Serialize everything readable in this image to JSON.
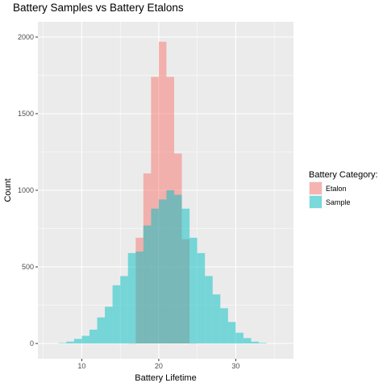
{
  "chart_data": {
    "type": "histogram",
    "title": "Battery Samples vs Battery Etalons",
    "xlabel": "Battery Lifetime",
    "ylabel": "Count",
    "xlim": [
      4.3,
      37.5
    ],
    "ylim": [
      -100,
      2100
    ],
    "x_ticks": [
      10,
      20,
      30
    ],
    "y_ticks": [
      0,
      500,
      1000,
      1500,
      2000
    ],
    "bin_width": 1,
    "grid": true,
    "legend": {
      "title": "Battery Category:",
      "position": "right"
    },
    "series": [
      {
        "name": "Etalon",
        "color": "#F8766D",
        "opacity": 0.5,
        "bins": [
          {
            "x": 16.5,
            "y": 0
          },
          {
            "x": 17.5,
            "y": 690
          },
          {
            "x": 18.5,
            "y": 1110
          },
          {
            "x": 19.5,
            "y": 1740
          },
          {
            "x": 20.5,
            "y": 1970
          },
          {
            "x": 21.5,
            "y": 1740
          },
          {
            "x": 22.5,
            "y": 1240
          },
          {
            "x": 23.5,
            "y": 680
          },
          {
            "x": 24.5,
            "y": 0
          }
        ]
      },
      {
        "name": "Sample",
        "color": "#00BFC4",
        "opacity": 0.5,
        "bins": [
          {
            "x": 7.5,
            "y": 3
          },
          {
            "x": 8.5,
            "y": 12
          },
          {
            "x": 9.5,
            "y": 30
          },
          {
            "x": 10.5,
            "y": 50
          },
          {
            "x": 11.5,
            "y": 90
          },
          {
            "x": 12.5,
            "y": 170
          },
          {
            "x": 13.5,
            "y": 240
          },
          {
            "x": 14.5,
            "y": 380
          },
          {
            "x": 15.5,
            "y": 440
          },
          {
            "x": 16.5,
            "y": 590
          },
          {
            "x": 17.5,
            "y": 600
          },
          {
            "x": 18.5,
            "y": 770
          },
          {
            "x": 19.5,
            "y": 880
          },
          {
            "x": 20.5,
            "y": 940
          },
          {
            "x": 21.5,
            "y": 1000
          },
          {
            "x": 22.5,
            "y": 970
          },
          {
            "x": 23.5,
            "y": 880
          },
          {
            "x": 24.5,
            "y": 690
          },
          {
            "x": 25.5,
            "y": 590
          },
          {
            "x": 26.5,
            "y": 440
          },
          {
            "x": 27.5,
            "y": 320
          },
          {
            "x": 28.5,
            "y": 230
          },
          {
            "x": 29.5,
            "y": 140
          },
          {
            "x": 30.5,
            "y": 70
          },
          {
            "x": 31.5,
            "y": 35
          },
          {
            "x": 32.5,
            "y": 12
          },
          {
            "x": 33.5,
            "y": 4
          }
        ]
      }
    ]
  }
}
